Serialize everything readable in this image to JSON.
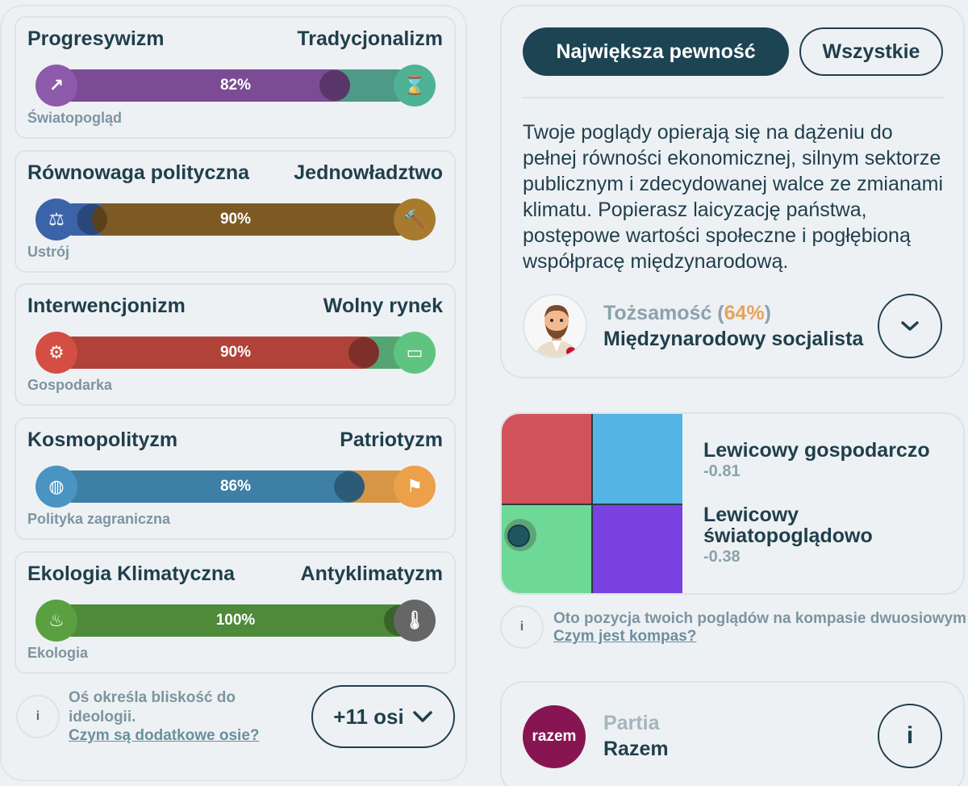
{
  "axes": [
    {
      "left_label": "Progresywizm",
      "right_label": "Tradycjonalizm",
      "category": "Światopogląd",
      "percent_label": "82%",
      "fill_fraction": 0.82,
      "fill_color": "#7b4b94",
      "bg_color": "#4e9a87",
      "left_icon_color": "#8e5aab",
      "right_icon_color": "#4fb295",
      "left_icon": "trending-up-icon",
      "right_icon": "hourglass-icon",
      "left_glyph": "↗",
      "right_glyph": "⌛"
    },
    {
      "left_label": "Równowaga polityczna",
      "right_label": "Jednowładztwo",
      "category": "Ustrój",
      "percent_label": "90%",
      "fill_fraction": 0.1,
      "fill_from": "right",
      "fill_color": "#7d5a24",
      "bg_color": "#3b63a8",
      "left_icon_color": "#3b63a8",
      "right_icon_color": "#a77a2e",
      "left_icon": "scales-icon",
      "right_icon": "gavel-icon",
      "left_glyph": "⚖",
      "right_glyph": "🔨"
    },
    {
      "left_label": "Interwencjonizm",
      "right_label": "Wolny rynek",
      "category": "Gospodarka",
      "percent_label": "90%",
      "fill_fraction": 0.9,
      "fill_color": "#b0423a",
      "bg_color": "#55a574",
      "left_icon_color": "#d44e44",
      "right_icon_color": "#5ec47f",
      "left_icon": "gear-icon",
      "right_icon": "banknote-icon",
      "left_glyph": "⚙",
      "right_glyph": "▭"
    },
    {
      "left_label": "Kosmopolityzm",
      "right_label": "Patriotyzm",
      "category": "Polityka zagraniczna",
      "percent_label": "86%",
      "fill_fraction": 0.86,
      "fill_color": "#3e7fa6",
      "bg_color": "#d79645",
      "left_icon_color": "#4a94c4",
      "right_icon_color": "#eca04a",
      "left_icon": "globe-icon",
      "right_icon": "flag-icon",
      "left_glyph": "◍",
      "right_glyph": "⚑"
    },
    {
      "left_label": "Ekologia Klimatyczna",
      "right_label": "Antyklimatyzm",
      "category": "Ekologia",
      "percent_label": "100%",
      "fill_fraction": 1.0,
      "fill_color": "#4e8a3a",
      "bg_color": "#616161",
      "left_icon_color": "#5aa040",
      "right_icon_color": "#666666",
      "left_icon": "eco-thermometer-icon",
      "right_icon": "thermometer-icon",
      "left_glyph": "♨",
      "right_glyph": "🌡"
    }
  ],
  "axes_note": {
    "text": "Oś określa bliskość do ideologii.",
    "link": "Czym są dodatkowe osie?",
    "more_button": "+11 osi"
  },
  "tabs": {
    "active": "Największa pewność",
    "inactive": "Wszystkie"
  },
  "description": "Twoje poglądy opierają się na dążeniu do pełnej równości ekonomicznej, silnym sektorze publicznym i zdecydowanej walce ze zmianami klimatu. Popierasz laicyzację państwa, postępowe wartości społeczne i pogłębioną współpracę międzynarodową.",
  "identity": {
    "label": "Tożsamość (",
    "percent": "64%",
    "label_close": ")",
    "name": "Międzynarodowy socjalista"
  },
  "compass": {
    "economic_title": "Lewicowy gospodarczo",
    "economic_value": "-0.81",
    "social_title_line1": "Lewicowy",
    "social_title_line2": "światopoglądowo",
    "social_value": "-0.38",
    "note_text": "Oto pozycja twoich poglądów na kompasie dwuosiowym",
    "note_link": "Czym jest kompas?",
    "quad_colors": [
      "#d1525a",
      "#55b4e6",
      "#6ed996",
      "#7a42e0"
    ]
  },
  "party": {
    "label": "Partia",
    "name": "Razem",
    "logo_text": "razem",
    "logo_color": "#871552"
  }
}
